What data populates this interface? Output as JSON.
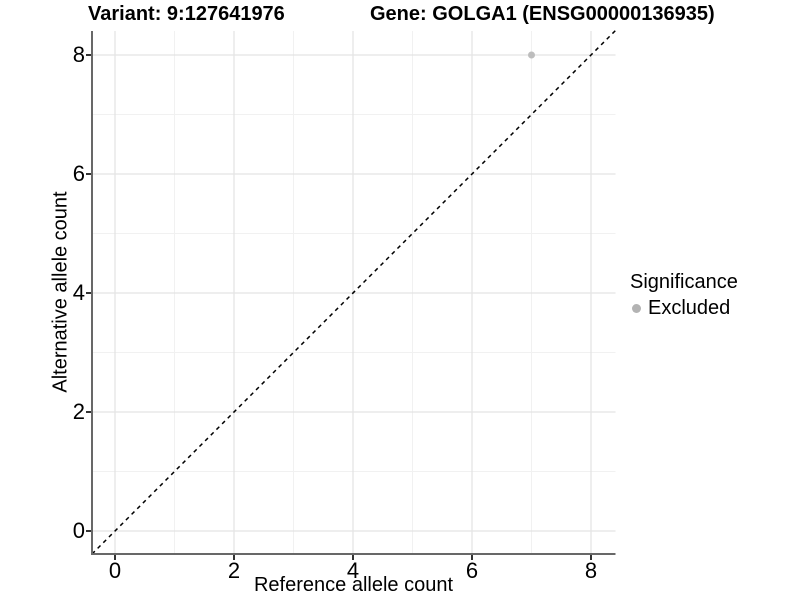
{
  "header": {
    "variant_title": "Variant: 9:127641976",
    "gene_title": "Gene: GOLGA1 (ENSG00000136935)"
  },
  "chart_data": {
    "type": "scatter",
    "title_left": "Variant: 9:127641976",
    "title_right": "Gene: GOLGA1 (ENSG00000136935)",
    "xlabel": "Reference allele count",
    "ylabel": "Alternative allele count",
    "xlim": [
      -0.4,
      8.4
    ],
    "ylim": [
      -0.4,
      8.4
    ],
    "x_ticks": [
      0,
      2,
      4,
      6,
      8
    ],
    "y_ticks": [
      0,
      2,
      4,
      6,
      8
    ],
    "x_minor_gridlines": [
      1,
      3,
      5,
      7
    ],
    "y_minor_gridlines": [
      1,
      3,
      5,
      7
    ],
    "grid": "on",
    "series": [
      {
        "name": "Excluded",
        "marker": "circle",
        "color": "#bdbdbd",
        "points": [
          {
            "x": 7,
            "y": 8
          }
        ]
      }
    ],
    "reference_line": {
      "type": "identity y=x",
      "style": "dashed",
      "color": "#000000"
    },
    "legend": {
      "title": "Significance",
      "position": "right",
      "items": [
        {
          "label": "Excluded",
          "color": "#b3b3b3",
          "marker": "circle"
        }
      ]
    },
    "colors": {
      "axis_line": "#686868",
      "tick_mark": "#333333",
      "grid_major": "#e4e4e4",
      "grid_minor": "#f1f1f1",
      "background": "#ffffff"
    }
  }
}
